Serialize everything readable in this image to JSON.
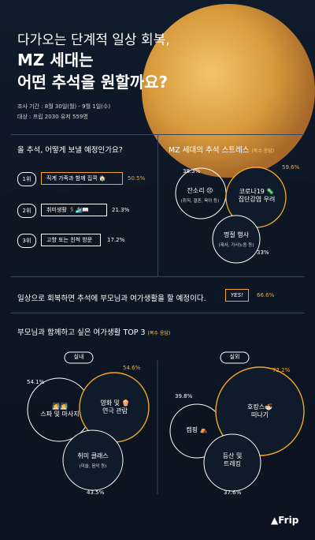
{
  "colors": {
    "accent": "#f5a623",
    "background": "#101a29",
    "moon": "#d89a3c"
  },
  "header": {
    "title_line1": "다가오는 단계적 일상 회복,",
    "title_line2": "MZ 세대는",
    "title_line3": "어떤 추석을 원할까요?",
    "survey_period": "조사 기간 : 8월 30일(월) - 9월 1일(수)",
    "survey_target": "대상 : 프립 2030 유저 559명"
  },
  "q1": {
    "question": "올 추석, 어떻게 보낼 예정인가요?",
    "items": [
      {
        "rank": "1위",
        "label": "직계 가족과 함께 집콕 🏠",
        "pct": "50.5%"
      },
      {
        "rank": "2위",
        "label": "취미생활 🏃‍♀️🏄📖",
        "pct": "21.3%"
      },
      {
        "rank": "3위",
        "label": "고향 또는 친척 방문",
        "pct": "17.2%"
      }
    ]
  },
  "q2": {
    "question": "MZ 세대의 추석 스트레스",
    "note": "(복수 응답)",
    "bubbles": [
      {
        "label": "잔소리 😣",
        "sub": "(취직, 결혼, 육아 등)",
        "pct": "38.3%"
      },
      {
        "label": "코로나19 🦠\n집단감염 우려",
        "sub": "",
        "pct": "59.6%"
      },
      {
        "label": "명절 행사",
        "sub": "(제사, 가사노동 등)",
        "pct": "33%"
      }
    ]
  },
  "q3": {
    "question": "일상으로 회복하면 추석에 부모님과 여가생활을 할 예정이다.",
    "answer": "YES!",
    "pct": "66.6%"
  },
  "q4": {
    "question": "부모님과 함께하고 싶은 여가생활 TOP 3",
    "note": "(복수 응답)",
    "indoor": {
      "label": "실내",
      "bubbles": [
        {
          "label": "🧖🧖\n스파 및 마사지",
          "sub": "",
          "pct": "54.1%"
        },
        {
          "label": "영화 및 🍿\n연극 관람",
          "sub": "",
          "pct": "54.6%"
        },
        {
          "label": "취미 클래스",
          "sub": "(미술, 음악 등)",
          "pct": "43.5%"
        }
      ]
    },
    "outdoor": {
      "label": "실외",
      "bubbles": [
        {
          "label": "캠핑 ⛺",
          "sub": "",
          "pct": "39.8%"
        },
        {
          "label": "호캉스🍜\n떠나기",
          "sub": "",
          "pct": "72.2%"
        },
        {
          "label": "등산 및\n트레킹",
          "sub": "",
          "pct": "37.6%"
        }
      ]
    }
  },
  "brand": {
    "logo": "Frip"
  },
  "chart_data": [
    {
      "type": "bar",
      "title": "올 추석, 어떻게 보낼 예정인가요?",
      "categories": [
        "직계 가족과 함께 집콕",
        "취미생활",
        "고향 또는 친척 방문"
      ],
      "values": [
        50.5,
        21.3,
        17.2
      ]
    },
    {
      "type": "scatter",
      "title": "MZ 세대의 추석 스트레스",
      "categories": [
        "잔소리",
        "코로나19 집단감염 우려",
        "명절 행사"
      ],
      "values": [
        38.3,
        59.6,
        33
      ]
    },
    {
      "type": "bar",
      "title": "일상으로 회복하면 추석에 부모님과 여가생활을 할 예정이다.",
      "categories": [
        "YES!"
      ],
      "values": [
        66.6
      ]
    },
    {
      "type": "scatter",
      "title": "부모님과 함께하고 싶은 여가생활 TOP 3",
      "series": [
        {
          "name": "실내",
          "categories": [
            "스파 및 마사지",
            "영화 및 연극 관람",
            "취미 클래스"
          ],
          "values": [
            54.1,
            54.6,
            43.5
          ]
        },
        {
          "name": "실외",
          "categories": [
            "캠핑",
            "호캉스 떠나기",
            "등산 및 트레킹"
          ],
          "values": [
            39.8,
            72.2,
            37.6
          ]
        }
      ]
    }
  ]
}
